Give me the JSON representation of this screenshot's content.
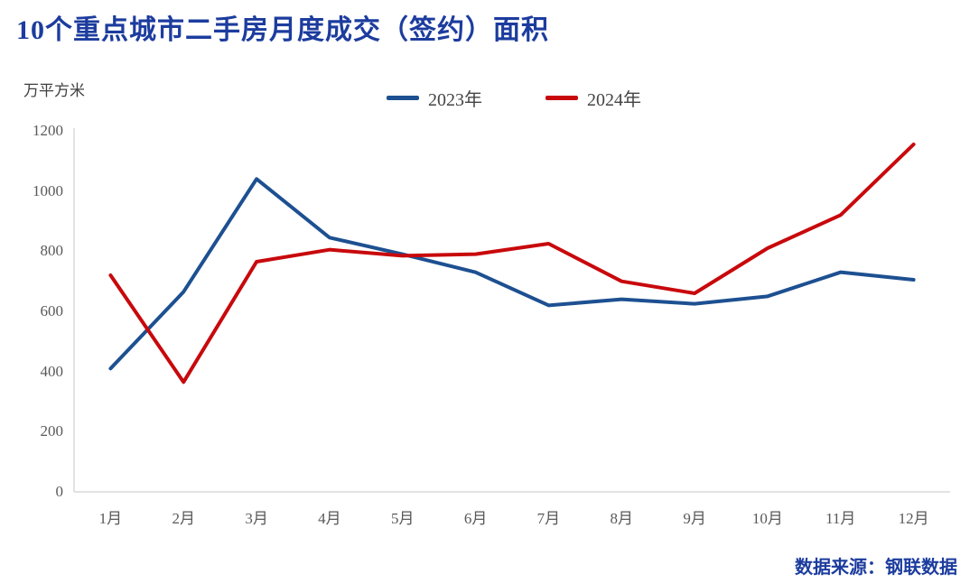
{
  "title": "10个重点城市二手房月度成交（签约）面积",
  "source": "数据来源：钢联数据",
  "colors": {
    "title_blue": "#1c3c9e",
    "series_2023": "#1d5091",
    "series_2024": "#c8090c",
    "axis_line": "#d9d9d9",
    "tick_label": "#595959",
    "legend_text": "#444444"
  },
  "chart_data": {
    "type": "line",
    "title": "10个重点城市二手房月度成交（签约）面积",
    "xlabel": "",
    "ylabel": "万平方米",
    "categories": [
      "1月",
      "2月",
      "3月",
      "4月",
      "5月",
      "6月",
      "7月",
      "8月",
      "9月",
      "10月",
      "11月",
      "12月"
    ],
    "series": [
      {
        "name": "2023年",
        "color": "#1d5091",
        "values": [
          410,
          665,
          1040,
          845,
          790,
          730,
          620,
          640,
          625,
          650,
          730,
          705
        ]
      },
      {
        "name": "2024年",
        "color": "#c8090c",
        "values": [
          720,
          365,
          765,
          805,
          785,
          790,
          825,
          700,
          660,
          810,
          920,
          1155
        ]
      }
    ],
    "ylim": [
      0,
      1200
    ],
    "ytick_step": 200,
    "grid": false,
    "legend_position": "top-center"
  }
}
